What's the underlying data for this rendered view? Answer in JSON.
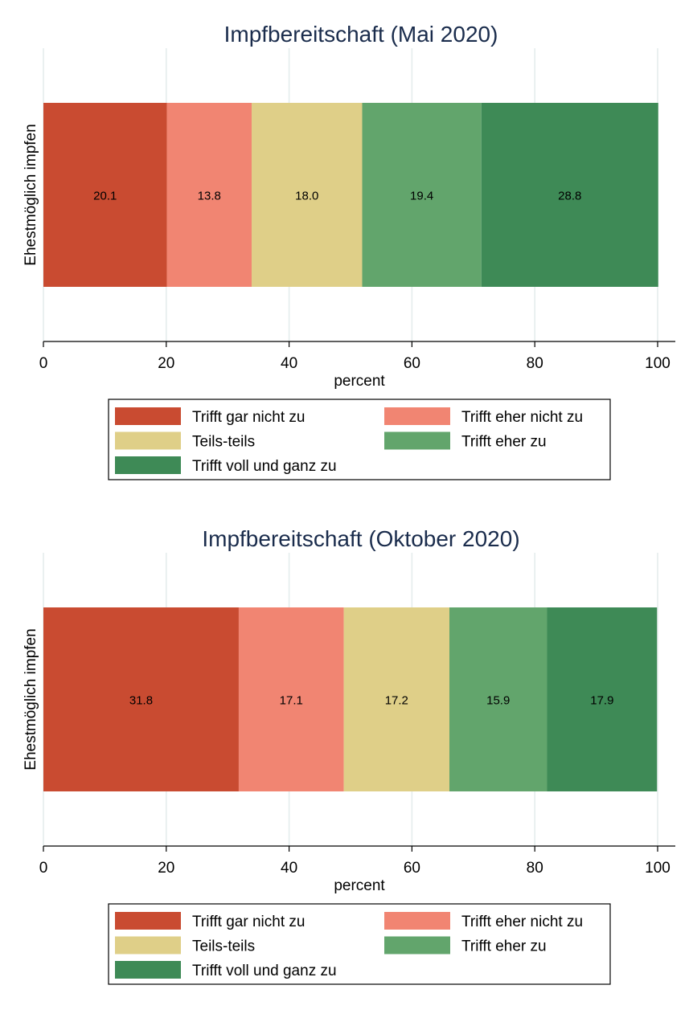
{
  "legend_entries": [
    "Trifft gar nicht zu",
    "Trifft eher nicht zu",
    "Teils-teils",
    "Trifft eher zu",
    "Trifft voll und ganz zu"
  ],
  "colors": [
    "#c94b31",
    "#f18572",
    "#dfcf88",
    "#62a56c",
    "#3e8a56"
  ],
  "chart_data": [
    {
      "type": "bar",
      "orientation": "horizontal",
      "stacked": true,
      "title": "Impfbereitschaft (Mai 2020)",
      "ylabel": "Ehestmöglich impfen",
      "xlabel": "percent",
      "xlim": [
        0,
        100
      ],
      "xticks": [
        0,
        20,
        40,
        60,
        80,
        100
      ],
      "categories": [
        "Ehestmöglich impfen"
      ],
      "grid": true,
      "legend_position": "bottom",
      "series": [
        {
          "name": "Trifft gar nicht zu",
          "values": [
            20.1
          ],
          "label": "20.1"
        },
        {
          "name": "Trifft eher nicht zu",
          "values": [
            13.8
          ],
          "label": "13.8"
        },
        {
          "name": "Teils-teils",
          "values": [
            18.0
          ],
          "label": "18.0"
        },
        {
          "name": "Trifft eher zu",
          "values": [
            19.4
          ],
          "label": "19.4"
        },
        {
          "name": "Trifft voll und ganz zu",
          "values": [
            28.8
          ],
          "label": "28.8"
        }
      ]
    },
    {
      "type": "bar",
      "orientation": "horizontal",
      "stacked": true,
      "title": "Impfbereitschaft (Oktober 2020)",
      "ylabel": "Ehestmöglich impfen",
      "xlabel": "percent",
      "xlim": [
        0,
        100
      ],
      "xticks": [
        0,
        20,
        40,
        60,
        80,
        100
      ],
      "categories": [
        "Ehestmöglich impfen"
      ],
      "grid": true,
      "legend_position": "bottom",
      "series": [
        {
          "name": "Trifft gar nicht zu",
          "values": [
            31.8
          ],
          "label": "31.8"
        },
        {
          "name": "Trifft eher nicht zu",
          "values": [
            17.1
          ],
          "label": "17.1"
        },
        {
          "name": "Teils-teils",
          "values": [
            17.2
          ],
          "label": "17.2"
        },
        {
          "name": "Trifft eher zu",
          "values": [
            15.9
          ],
          "label": "15.9"
        },
        {
          "name": "Trifft voll und ganz zu",
          "values": [
            17.9
          ],
          "label": "17.9"
        }
      ]
    }
  ]
}
